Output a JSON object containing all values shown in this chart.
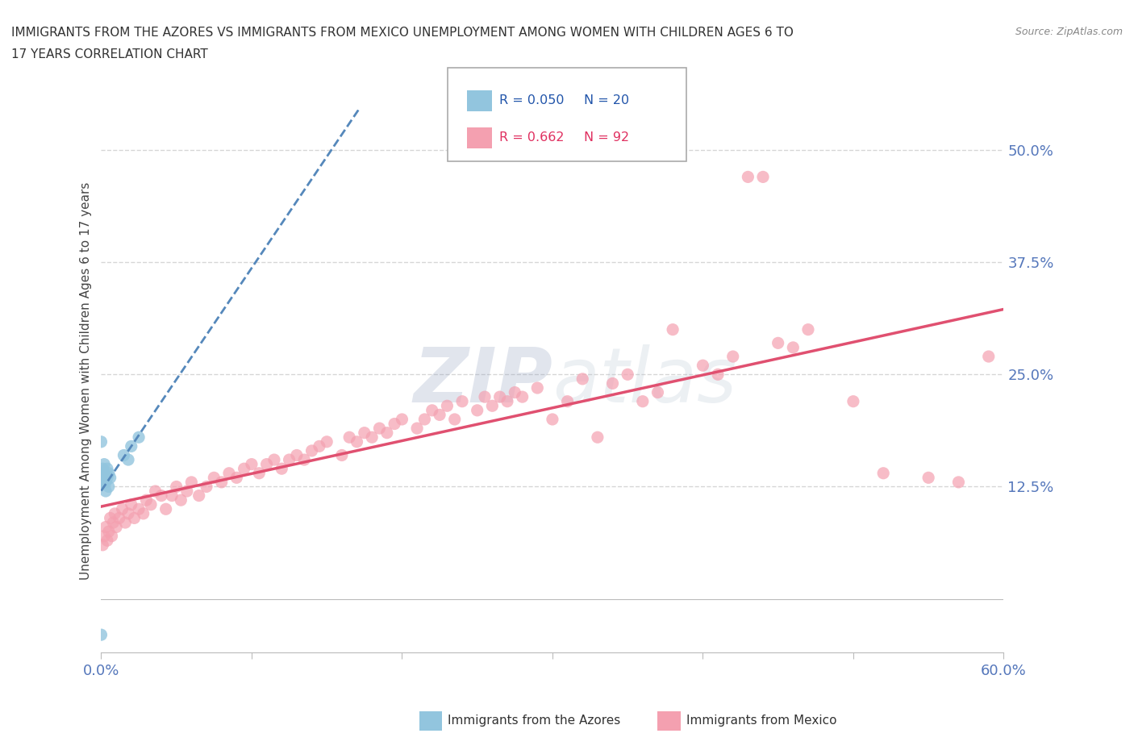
{
  "title_line1": "IMMIGRANTS FROM THE AZORES VS IMMIGRANTS FROM MEXICO UNEMPLOYMENT AMONG WOMEN WITH CHILDREN AGES 6 TO",
  "title_line2": "17 YEARS CORRELATION CHART",
  "source_text": "Source: ZipAtlas.com",
  "ylabel": "Unemployment Among Women with Children Ages 6 to 17 years",
  "xmin": 0.0,
  "xmax": 0.6,
  "ymin": -0.06,
  "ymax": 0.545,
  "azores_R": 0.05,
  "azores_N": 20,
  "mexico_R": 0.662,
  "mexico_N": 92,
  "azores_color": "#92C5DE",
  "mexico_color": "#F4A0B0",
  "azores_line_color": "#5588BB",
  "mexico_line_color": "#E05070",
  "watermark_color": "#CCDDEE",
  "background_color": "#ffffff",
  "grid_color": "#CCCCCC",
  "azores_x": [
    0.001,
    0.001,
    0.001,
    0.001,
    0.002,
    0.002,
    0.002,
    0.003,
    0.003,
    0.004,
    0.004,
    0.005,
    0.005,
    0.006,
    0.015,
    0.018,
    0.02,
    0.025,
    0.0,
    0.0
  ],
  "azores_y": [
    0.13,
    0.135,
    0.14,
    0.145,
    0.13,
    0.14,
    0.15,
    0.12,
    0.13,
    0.135,
    0.145,
    0.125,
    0.14,
    0.135,
    0.16,
    0.155,
    0.17,
    0.18,
    0.175,
    -0.04
  ],
  "mexico_x": [
    0.001,
    0.002,
    0.003,
    0.004,
    0.005,
    0.006,
    0.007,
    0.008,
    0.009,
    0.01,
    0.012,
    0.014,
    0.016,
    0.018,
    0.02,
    0.022,
    0.025,
    0.028,
    0.03,
    0.033,
    0.036,
    0.04,
    0.043,
    0.047,
    0.05,
    0.053,
    0.057,
    0.06,
    0.065,
    0.07,
    0.075,
    0.08,
    0.085,
    0.09,
    0.095,
    0.1,
    0.105,
    0.11,
    0.115,
    0.12,
    0.125,
    0.13,
    0.135,
    0.14,
    0.145,
    0.15,
    0.16,
    0.165,
    0.17,
    0.175,
    0.18,
    0.185,
    0.19,
    0.195,
    0.2,
    0.21,
    0.215,
    0.22,
    0.225,
    0.23,
    0.235,
    0.24,
    0.25,
    0.255,
    0.26,
    0.265,
    0.27,
    0.275,
    0.28,
    0.29,
    0.3,
    0.31,
    0.32,
    0.33,
    0.34,
    0.35,
    0.36,
    0.37,
    0.38,
    0.4,
    0.41,
    0.42,
    0.43,
    0.44,
    0.45,
    0.46,
    0.47,
    0.5,
    0.52,
    0.55,
    0.57,
    0.59
  ],
  "mexico_y": [
    0.06,
    0.07,
    0.08,
    0.065,
    0.075,
    0.09,
    0.07,
    0.085,
    0.095,
    0.08,
    0.09,
    0.1,
    0.085,
    0.095,
    0.105,
    0.09,
    0.1,
    0.095,
    0.11,
    0.105,
    0.12,
    0.115,
    0.1,
    0.115,
    0.125,
    0.11,
    0.12,
    0.13,
    0.115,
    0.125,
    0.135,
    0.13,
    0.14,
    0.135,
    0.145,
    0.15,
    0.14,
    0.15,
    0.155,
    0.145,
    0.155,
    0.16,
    0.155,
    0.165,
    0.17,
    0.175,
    0.16,
    0.18,
    0.175,
    0.185,
    0.18,
    0.19,
    0.185,
    0.195,
    0.2,
    0.19,
    0.2,
    0.21,
    0.205,
    0.215,
    0.2,
    0.22,
    0.21,
    0.225,
    0.215,
    0.225,
    0.22,
    0.23,
    0.225,
    0.235,
    0.2,
    0.22,
    0.245,
    0.18,
    0.24,
    0.25,
    0.22,
    0.23,
    0.3,
    0.26,
    0.25,
    0.27,
    0.47,
    0.47,
    0.285,
    0.28,
    0.3,
    0.22,
    0.14,
    0.135,
    0.13,
    0.27
  ]
}
